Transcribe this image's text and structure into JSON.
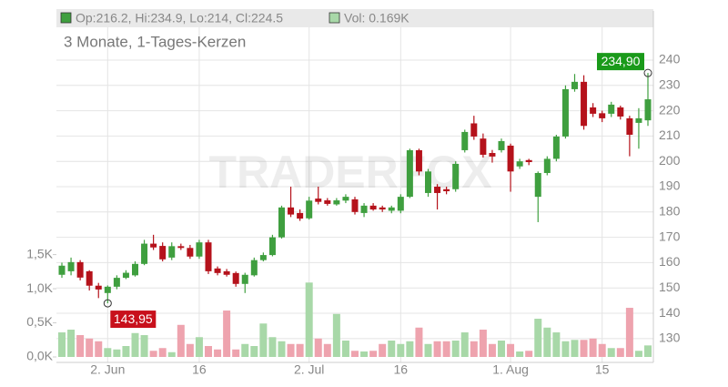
{
  "chart_data": {
    "type": "candlestick",
    "header_ohlc": "Op:216.2, Hi:234.9, Lo:214, Cl:224.5",
    "header_volume": "Vol: 0.169K",
    "subtitle": "3 Monate, 1-Tages-Kerzen",
    "watermark": "TRADERFOX",
    "categories": [
      null,
      null,
      null,
      null,
      null,
      "2. Jun",
      null,
      null,
      null,
      null,
      null,
      null,
      null,
      null,
      null,
      "16",
      null,
      null,
      null,
      null,
      null,
      null,
      null,
      null,
      null,
      null,
      null,
      "2. Jul",
      null,
      null,
      null,
      null,
      null,
      null,
      null,
      null,
      null,
      "16",
      null,
      null,
      null,
      null,
      null,
      null,
      null,
      null,
      null,
      null,
      null,
      "1. Aug",
      null,
      null,
      null,
      null,
      null,
      null,
      null,
      null,
      null,
      "15",
      null,
      null,
      null,
      null,
      null
    ],
    "open": [
      155.2,
      156.6,
      160.2,
      156.6,
      150.9,
      148,
      150.5,
      154,
      155,
      159.5,
      167.5,
      166.6,
      162,
      166.5,
      165.8,
      162.4,
      168,
      157.7,
      156.6,
      155.9,
      151.6,
      155,
      161,
      163,
      170,
      181.8,
      179.6,
      177.5,
      185.3,
      184.6,
      183,
      184.5,
      185,
      179.6,
      182.5,
      181.8,
      180.5,
      180.5,
      186,
      204.4,
      187.5,
      190,
      189,
      189,
      204.4,
      215,
      209,
      203.3,
      204.4,
      206.2,
      198,
      200.5,
      186,
      195.4,
      201,
      209.8,
      228.5,
      231.4,
      221.3,
      219,
      218.8,
      221.3,
      217,
      215.2,
      216.2
    ],
    "high": [
      160,
      162,
      161,
      157,
      152,
      151,
      155,
      157,
      160.5,
      169,
      171,
      168,
      168,
      167.5,
      167,
      169,
      169,
      158.5,
      157.5,
      156.5,
      156,
      162,
      164,
      171,
      182.5,
      190,
      181,
      186,
      190,
      185.5,
      185.5,
      187,
      186,
      183.5,
      183.5,
      182.5,
      182.5,
      187,
      205,
      205,
      197,
      191,
      190,
      200,
      212.5,
      218,
      211,
      204.5,
      209,
      207,
      201,
      201,
      196,
      202,
      210.5,
      230,
      234.5,
      234,
      223,
      220,
      223.5,
      222,
      218,
      221,
      234.9
    ],
    "low": [
      154,
      155,
      153,
      149,
      146,
      143.95,
      149.5,
      153.5,
      154.5,
      159,
      165,
      160.5,
      161,
      165,
      161.5,
      161.5,
      155.5,
      155,
      154.5,
      150.5,
      148,
      154.5,
      160.5,
      162.5,
      169.5,
      178,
      176.5,
      177,
      183,
      182.5,
      182.5,
      183.5,
      179,
      178,
      180.5,
      180,
      179.5,
      179.5,
      185.5,
      194.5,
      186,
      181,
      187,
      188,
      203.5,
      208.5,
      201.5,
      199.5,
      203.5,
      188,
      197,
      198.5,
      176,
      194.5,
      200,
      209,
      227.5,
      212.5,
      217.5,
      215.5,
      217.5,
      216.5,
      202,
      205,
      214
    ],
    "close": [
      158.8,
      160.2,
      154.1,
      150.9,
      149.4,
      150.5,
      154,
      156,
      159.5,
      167.5,
      166,
      161.3,
      166.5,
      165.8,
      162.4,
      168,
      156.6,
      155.9,
      155.2,
      151.6,
      155.2,
      161,
      163,
      170,
      181.8,
      179,
      177.4,
      184.5,
      184,
      183.2,
      184.6,
      186,
      180,
      182.5,
      181,
      181,
      181.8,
      186,
      204.4,
      196,
      196,
      187.5,
      188.2,
      199,
      211.6,
      209.8,
      202.6,
      201.9,
      208,
      196,
      200,
      199.7,
      195.4,
      201,
      209.8,
      228.5,
      231.4,
      214,
      218.8,
      217,
      222.4,
      217.7,
      210.5,
      217,
      224.5
    ],
    "up_color": "#3f9f3f",
    "down_color": "#b5121b",
    "ylim": [
      120.6,
      259.4
    ],
    "yticks": [
      130,
      140,
      150,
      160,
      170,
      180,
      190,
      200,
      210,
      220,
      230,
      240
    ],
    "grid": true,
    "volume": {
      "values": [
        0.36,
        0.4,
        0.32,
        0.27,
        0.23,
        0.13,
        0.11,
        0.16,
        0.35,
        0.32,
        0.09,
        0.13,
        0.07,
        0.47,
        0.19,
        0.29,
        0.16,
        0.11,
        0.68,
        0.11,
        0.19,
        0.16,
        0.49,
        0.29,
        0.23,
        0.19,
        0.19,
        1.09,
        0.27,
        0.19,
        0.63,
        0.24,
        0.09,
        0.08,
        0.09,
        0.19,
        0.24,
        0.19,
        0.23,
        0.43,
        0.19,
        0.23,
        0.23,
        0.24,
        0.36,
        0.23,
        0.4,
        0.19,
        0.24,
        0.19,
        0.08,
        0.09,
        0.56,
        0.43,
        0.36,
        0.23,
        0.25,
        0.25,
        0.27,
        0.19,
        0.13,
        0.13,
        0.72,
        0.09,
        0.169
      ],
      "up_color": "#a8d8a8",
      "down_color": "#eea3ae",
      "ylim": [
        -0.08,
        5.07
      ],
      "yticks": [
        {
          "value": 0,
          "label": "0,0K"
        },
        {
          "value": 0.5,
          "label": "0,5K"
        },
        {
          "value": 1,
          "label": "1,0K"
        },
        {
          "value": 1.5,
          "label": "1,5K"
        }
      ]
    },
    "annotations": {
      "high": {
        "value": 234.9,
        "label": "234,90"
      },
      "low": {
        "value": 143.95,
        "label": "143,95"
      }
    }
  }
}
